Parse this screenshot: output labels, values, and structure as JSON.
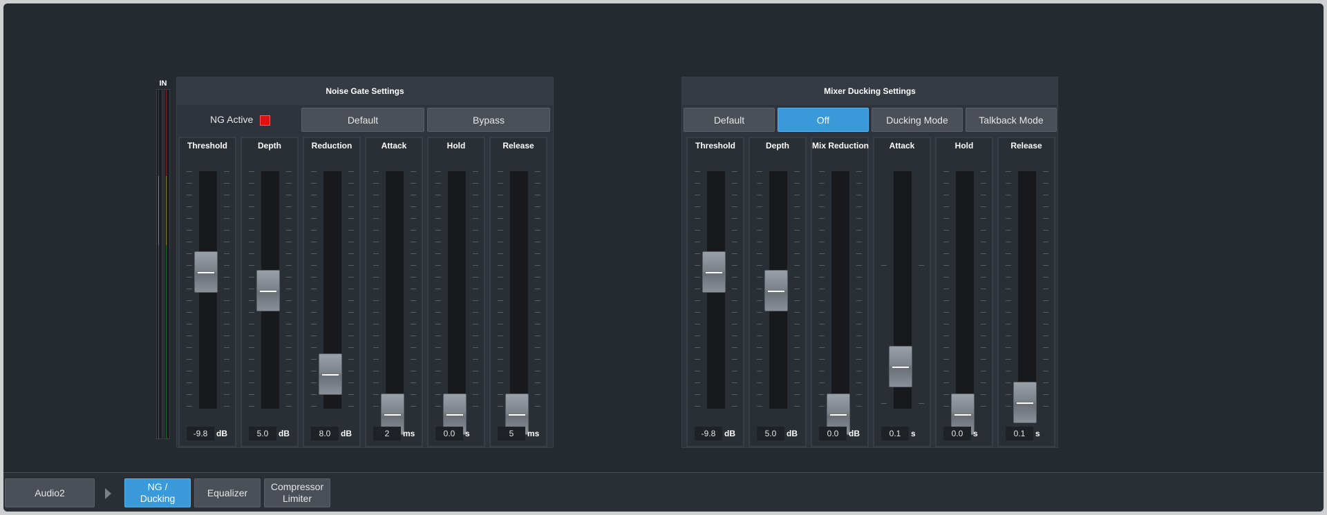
{
  "meter": {
    "label": "IN"
  },
  "noise_gate": {
    "title": "Noise Gate Settings",
    "ng_active_label": "NG Active",
    "ng_active": true,
    "buttons": {
      "default": "Default",
      "bypass": "Bypass"
    },
    "sliders": [
      {
        "title": "Threshold",
        "value": "-9.8",
        "unit": "dB",
        "level": 0.6
      },
      {
        "title": "Depth",
        "value": "5.0",
        "unit": "dB",
        "level": 0.52
      },
      {
        "title": "Reduction",
        "value": "8.0",
        "unit": "dB",
        "level": 0.17
      },
      {
        "title": "Attack",
        "value": "2",
        "unit": "ms",
        "level": 0.0
      },
      {
        "title": "Hold",
        "value": "0.0",
        "unit": "s",
        "level": 0.0
      },
      {
        "title": "Release",
        "value": "5",
        "unit": "ms",
        "level": 0.0
      }
    ]
  },
  "ducking": {
    "title": "Mixer Ducking Settings",
    "buttons": {
      "default": "Default",
      "off": "Off",
      "ducking_mode": "Ducking Mode",
      "talkback_mode": "Talkback Mode"
    },
    "sliders": [
      {
        "title": "Threshold",
        "value": "-9.8",
        "unit": "dB",
        "level": 0.6
      },
      {
        "title": "Depth",
        "value": "5.0",
        "unit": "dB",
        "level": 0.52
      },
      {
        "title": "Mix Reduction",
        "value": "0.0",
        "unit": "dB",
        "level": 0.0
      },
      {
        "title": "Attack",
        "value": "0.1",
        "unit": "s",
        "level": 0.2
      },
      {
        "title": "Hold",
        "value": "0.0",
        "unit": "s",
        "level": 0.0
      },
      {
        "title": "Release",
        "value": "0.1",
        "unit": "s",
        "level": 0.05
      }
    ]
  },
  "bottom": {
    "source": "Audio2",
    "tabs": [
      {
        "l1": "NG /",
        "l2": "Ducking",
        "active": true
      },
      {
        "l1": "Equalizer",
        "l2": "",
        "active": false
      },
      {
        "l1": "Compressor",
        "l2": "Limiter",
        "active": false
      }
    ]
  },
  "colors": {
    "accent": "#3a9ad9",
    "background": "#252a31",
    "ng_active_indicator": "#e01010"
  }
}
